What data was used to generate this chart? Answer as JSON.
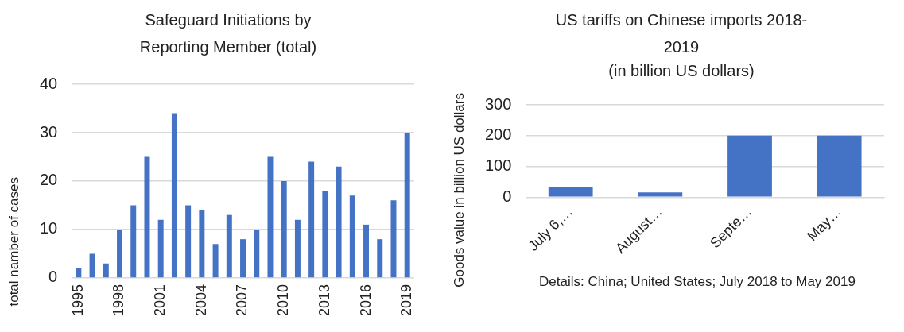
{
  "chart_data": [
    {
      "type": "bar",
      "title": "Safeguard Initiations by Reporting Member (total)",
      "ylabel": "total namber of cases",
      "categories": [
        "1995",
        null,
        null,
        "1998",
        null,
        null,
        "2001",
        null,
        null,
        "2004",
        null,
        null,
        "2007",
        null,
        null,
        "2010",
        null,
        null,
        "2013",
        null,
        null,
        "2016",
        null,
        null,
        "2019"
      ],
      "series": [
        {
          "color": "#4472c4",
          "values": [
            2,
            5,
            3,
            10,
            15,
            25,
            12,
            34,
            15,
            14,
            7,
            13,
            8,
            10,
            25,
            20,
            12,
            24,
            18,
            23,
            17,
            11,
            8,
            16,
            30
          ]
        }
      ],
      "ylim": [
        0,
        40
      ],
      "yticks": [
        0,
        10,
        20,
        30,
        40
      ],
      "grid": "y",
      "legend": false
    },
    {
      "type": "bar",
      "title": "US tariffs on Chinese imports 2018-2019",
      "subtitle": "(in billion US dollars)",
      "ylabel": "Goods value in billion US dollars",
      "categories": [
        "July 6,…",
        "August…",
        "Septe…",
        "May…"
      ],
      "series": [
        {
          "color": "#4472c4",
          "values": [
            34,
            16,
            200,
            200
          ]
        }
      ],
      "ylim": [
        0,
        300
      ],
      "yticks": [
        0,
        100,
        200,
        300
      ],
      "grid": "y",
      "legend": false,
      "annotations": [
        "Details: China; United States; July 2018 to May 2019"
      ]
    }
  ]
}
